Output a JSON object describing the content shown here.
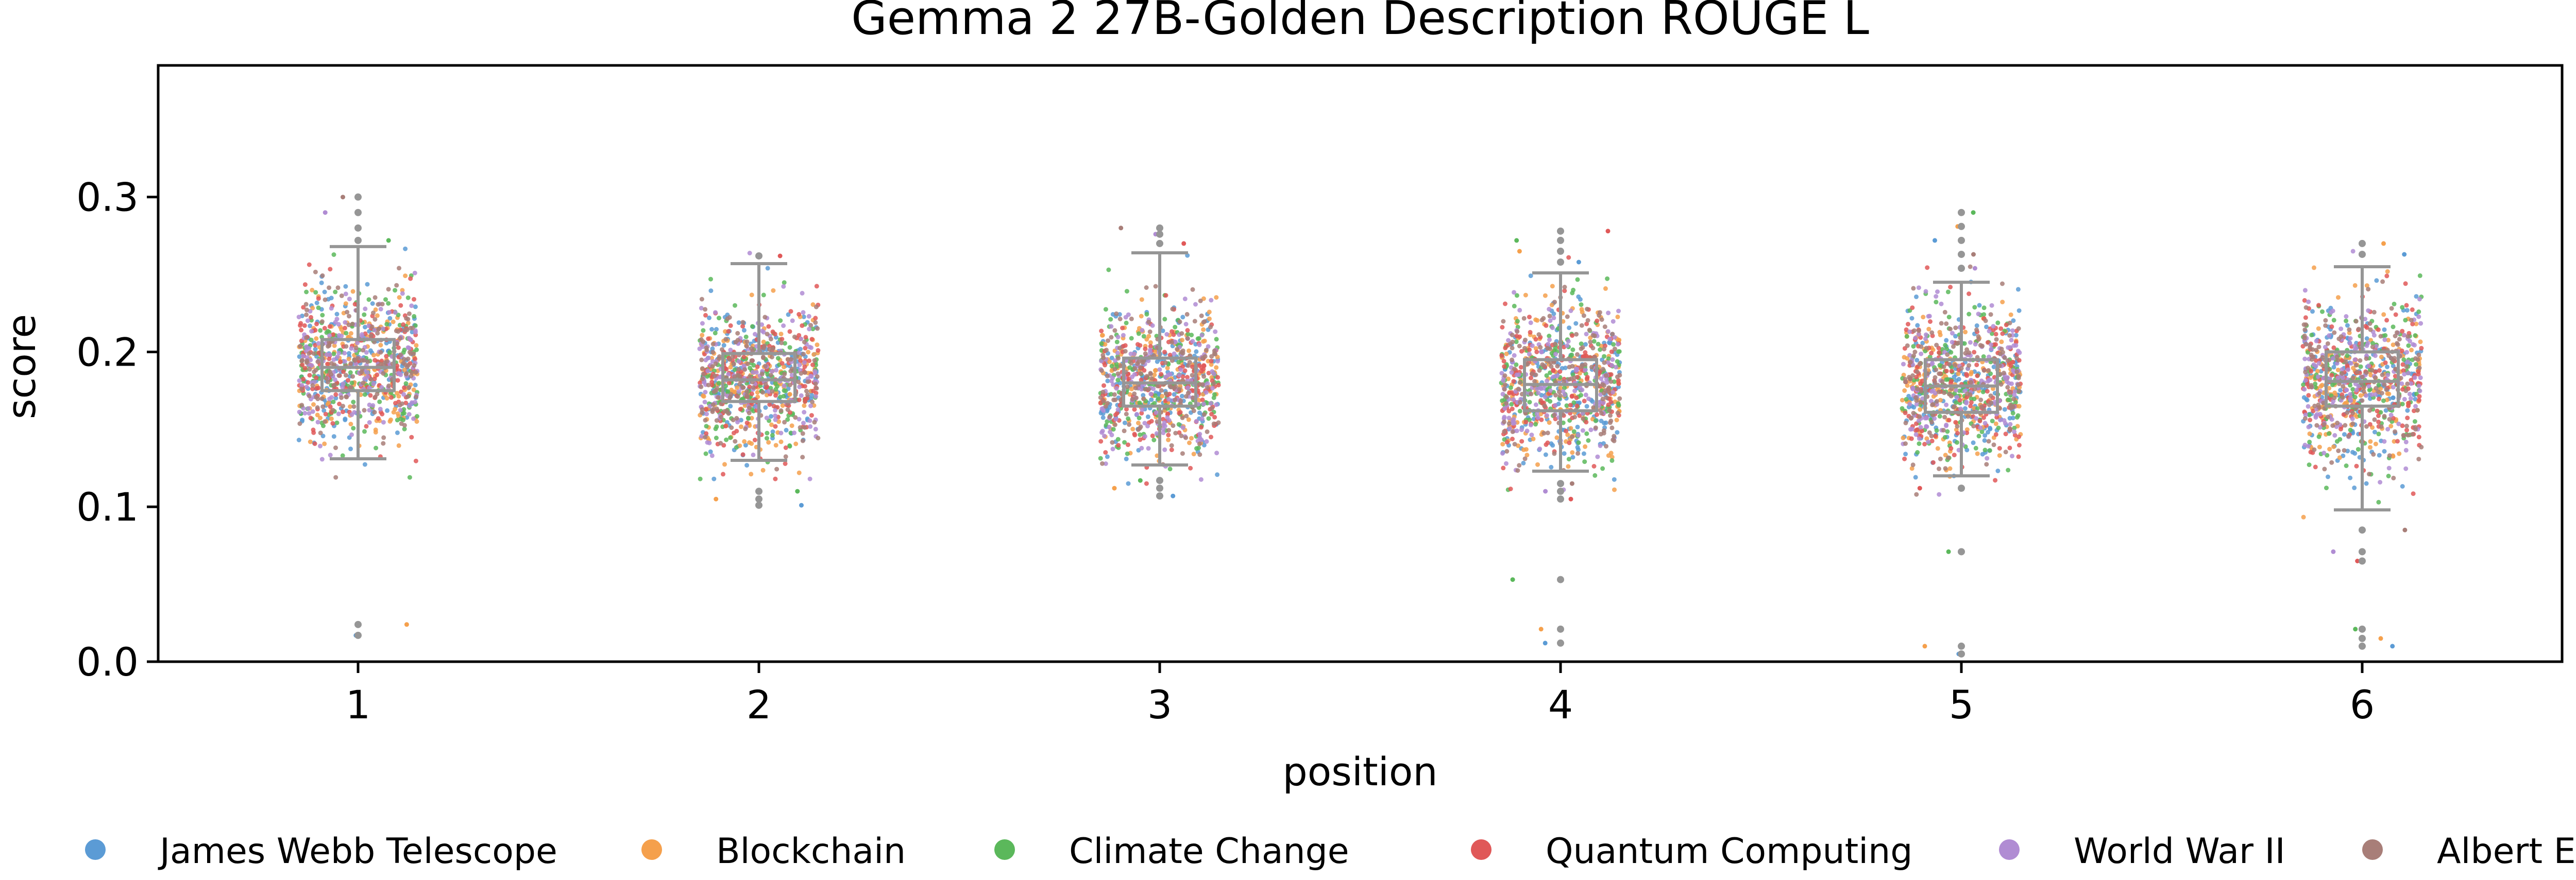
{
  "chart_data": {
    "type": "box-strip",
    "title": "Gemma 2 27B-Golden Description ROUGE L",
    "xlabel": "position",
    "ylabel": "score",
    "ylim": [
      0,
      0.385
    ],
    "yticks": [
      0.0,
      0.1,
      0.2,
      0.3
    ],
    "ytick_labels": [
      "0.0",
      "0.1",
      "0.2",
      "0.3"
    ],
    "categories": [
      "1",
      "2",
      "3",
      "4",
      "5",
      "6"
    ],
    "grid": false,
    "legend_position": "bottom",
    "series": [
      {
        "name": "James Webb Telescope",
        "color": "#5b9bd5"
      },
      {
        "name": "Blockchain",
        "color": "#f5a04c"
      },
      {
        "name": "Climate Change",
        "color": "#5bb85b"
      },
      {
        "name": "Quantum Computing",
        "color": "#e05858"
      },
      {
        "name": "World War II",
        "color": "#b08cd3"
      },
      {
        "name": "Albert Einstein",
        "color": "#a87e78"
      }
    ],
    "boxes": [
      {
        "position": "1",
        "q1": 0.175,
        "median": 0.19,
        "q3": 0.208,
        "whisker_low": 0.131,
        "whisker_high": 0.268,
        "outliers": [
          0.017,
          0.024,
          0.272,
          0.28,
          0.29,
          0.3
        ]
      },
      {
        "position": "2",
        "q1": 0.168,
        "median": 0.182,
        "q3": 0.199,
        "whisker_low": 0.13,
        "whisker_high": 0.257,
        "outliers": [
          0.101,
          0.105,
          0.11,
          0.262
        ]
      },
      {
        "position": "3",
        "q1": 0.165,
        "median": 0.18,
        "q3": 0.196,
        "whisker_low": 0.127,
        "whisker_high": 0.264,
        "outliers": [
          0.107,
          0.112,
          0.117,
          0.27,
          0.276,
          0.28
        ]
      },
      {
        "position": "4",
        "q1": 0.162,
        "median": 0.179,
        "q3": 0.195,
        "whisker_low": 0.123,
        "whisker_high": 0.251,
        "outliers": [
          0.012,
          0.021,
          0.053,
          0.105,
          0.11,
          0.115,
          0.258,
          0.265,
          0.272,
          0.278
        ]
      },
      {
        "position": "5",
        "q1": 0.161,
        "median": 0.178,
        "q3": 0.195,
        "whisker_low": 0.12,
        "whisker_high": 0.245,
        "outliers": [
          0.005,
          0.01,
          0.071,
          0.112,
          0.254,
          0.263,
          0.272,
          0.281,
          0.29
        ]
      },
      {
        "position": "6",
        "q1": 0.165,
        "median": 0.181,
        "q3": 0.2,
        "whisker_low": 0.098,
        "whisker_high": 0.255,
        "outliers": [
          0.01,
          0.015,
          0.021,
          0.065,
          0.071,
          0.085,
          0.263,
          0.27
        ]
      }
    ],
    "box_color": "#969696"
  }
}
